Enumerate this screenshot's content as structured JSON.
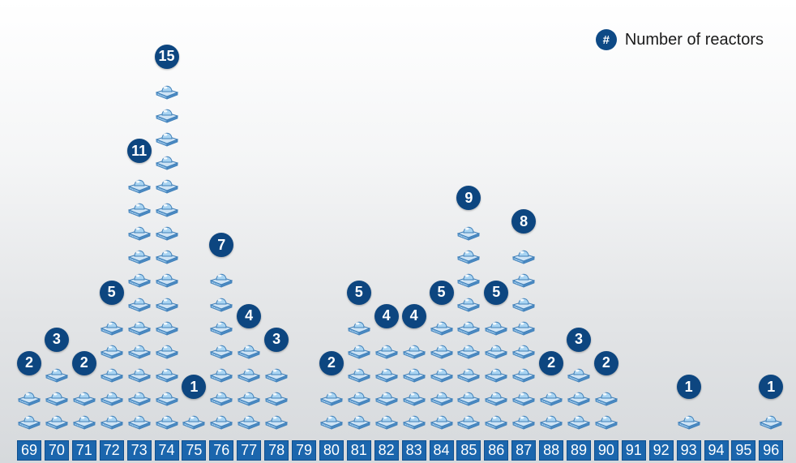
{
  "legend": {
    "badge": "#",
    "label": "Number of reactors"
  },
  "colors": {
    "badge": "#0d4680",
    "year_box": "#1b66ad",
    "reactor_dome": "#a9d4f2",
    "reactor_base": "#6fa9d9"
  },
  "icons": {
    "reactor": "reactor-icon"
  },
  "chart_data": {
    "type": "bar",
    "title": "",
    "xlabel": "",
    "ylabel": "",
    "categories": [
      "69",
      "70",
      "71",
      "72",
      "73",
      "74",
      "75",
      "76",
      "77",
      "78",
      "79",
      "80",
      "81",
      "82",
      "83",
      "84",
      "85",
      "86",
      "87",
      "88",
      "89",
      "90",
      "91",
      "92",
      "93",
      "94",
      "95",
      "96"
    ],
    "values": [
      2,
      3,
      2,
      5,
      11,
      15,
      1,
      7,
      4,
      3,
      0,
      2,
      5,
      4,
      4,
      5,
      9,
      5,
      8,
      2,
      3,
      2,
      0,
      0,
      1,
      0,
      0,
      1
    ]
  }
}
